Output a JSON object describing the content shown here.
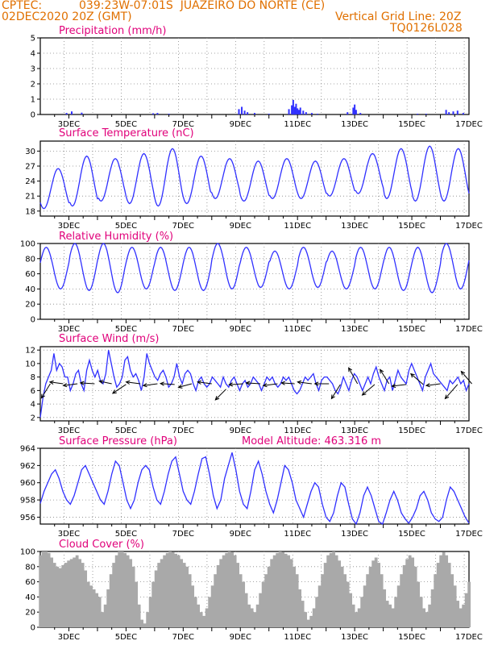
{
  "header": {
    "org": "CPTEC:",
    "location": "039:23W-07:01S  JUAZEIRO DO NORTE (CE)",
    "init_time": "02DEC2020 20Z (GMT)",
    "grid_note": "Vertical Grid Line: 20Z",
    "grid_id": "TQ0126L028",
    "model_altitude": "Model Altitude: 463.316 m"
  },
  "x_labels": [
    "3DEC",
    "5DEC",
    "7DEC",
    "9DEC",
    "11DEC",
    "13DEC",
    "15DEC",
    "17DEC"
  ],
  "colors": {
    "line": "#3030ff",
    "cloud": "#a9a9a9",
    "title": "#e0007a",
    "header": "#e07000"
  },
  "chart_data": [
    {
      "type": "bar",
      "title": "Precipitation (mm/h)",
      "ylim": [
        0,
        5
      ],
      "yticks": [
        0,
        1,
        2,
        3,
        4,
        5
      ],
      "x_range_days": [
        2,
        17
      ],
      "bars": [
        [
          2.92,
          0.1
        ],
        [
          3.1,
          0.2
        ],
        [
          3.45,
          0.12
        ],
        [
          5.95,
          0.08
        ],
        [
          6.1,
          0.1
        ],
        [
          6.5,
          0.05
        ],
        [
          8.95,
          0.35
        ],
        [
          9.05,
          0.5
        ],
        [
          9.15,
          0.25
        ],
        [
          9.25,
          0.15
        ],
        [
          9.5,
          0.1
        ],
        [
          10.0,
          0.05
        ],
        [
          10.7,
          0.35
        ],
        [
          10.8,
          0.6
        ],
        [
          10.85,
          0.95
        ],
        [
          10.9,
          0.5
        ],
        [
          10.95,
          0.7
        ],
        [
          11.0,
          0.4
        ],
        [
          11.05,
          0.3
        ],
        [
          11.1,
          0.45
        ],
        [
          11.2,
          0.25
        ],
        [
          11.3,
          0.15
        ],
        [
          11.5,
          0.1
        ],
        [
          11.7,
          0.05
        ],
        [
          12.75,
          0.15
        ],
        [
          12.95,
          0.45
        ],
        [
          13.0,
          0.65
        ],
        [
          13.05,
          0.3
        ],
        [
          13.2,
          0.1
        ],
        [
          15.2,
          0.05
        ],
        [
          15.5,
          0.05
        ],
        [
          16.2,
          0.3
        ],
        [
          16.3,
          0.15
        ],
        [
          16.45,
          0.2
        ],
        [
          16.6,
          0.25
        ],
        [
          16.8,
          0.1
        ]
      ]
    },
    {
      "type": "line",
      "title": "Surface Temperature (nC)",
      "ylim": [
        17,
        32
      ],
      "yticks": [
        18,
        21,
        24,
        27,
        30
      ],
      "x_range_days": [
        2,
        17
      ],
      "max_hour": 15,
      "min_hour": 4,
      "daily_max": [
        26.5,
        29.0,
        28.5,
        29.5,
        30.5,
        29.0,
        28.5,
        28.0,
        28.5,
        28.0,
        28.5,
        29.5,
        30.5,
        31.0,
        30.5,
        29.5
      ],
      "daily_min": [
        18.5,
        19.0,
        20.0,
        19.5,
        19.0,
        19.5,
        20.5,
        20.0,
        20.5,
        20.5,
        21.0,
        21.5,
        20.5,
        20.0,
        20.0,
        21.0
      ]
    },
    {
      "type": "line",
      "title": "Relative Humidity (%)",
      "ylim": [
        0,
        100
      ],
      "yticks": [
        0,
        20,
        40,
        60,
        80,
        100
      ],
      "x_range_days": [
        2,
        17
      ],
      "max_hour": 5,
      "min_hour": 17,
      "daily_max": [
        95,
        100,
        100,
        95,
        95,
        95,
        100,
        95,
        90,
        95,
        90,
        95,
        95,
        95,
        100,
        95
      ],
      "daily_min": [
        40,
        38,
        35,
        40,
        38,
        38,
        40,
        42,
        40,
        42,
        40,
        40,
        38,
        35,
        40,
        42
      ]
    },
    {
      "type": "line",
      "title": "Surface Wind (m/s)",
      "ylim": [
        1.5,
        12.5
      ],
      "yticks": [
        2,
        4,
        6,
        8,
        10,
        12
      ],
      "x_range_days": [
        2,
        17
      ],
      "values": [
        2,
        5,
        7,
        8,
        9,
        11.5,
        9,
        10,
        9.5,
        8,
        8,
        6,
        7,
        8.5,
        9,
        7,
        6,
        9,
        10.5,
        9,
        8,
        9,
        7.5,
        7,
        8.5,
        12,
        10,
        8,
        6.5,
        7,
        8,
        10.5,
        11,
        9,
        8,
        8.5,
        7.5,
        6,
        8,
        11.5,
        10,
        9,
        8,
        7.5,
        8.5,
        9,
        8,
        6.5,
        7,
        8,
        10,
        8,
        7,
        8.5,
        9,
        8.5,
        7,
        6,
        7.5,
        8,
        7,
        6.5,
        7,
        8,
        7.5,
        7,
        6.5,
        8,
        7,
        6.5,
        7.5,
        8,
        7,
        6,
        7,
        7.5,
        6.5,
        7,
        8,
        7.5,
        7,
        6,
        7,
        8,
        7.5,
        8,
        7,
        6.5,
        7,
        8,
        7.5,
        8,
        7,
        6,
        5.5,
        6,
        7,
        8,
        7.5,
        8,
        8.5,
        7,
        6,
        7.5,
        8,
        8,
        7.5,
        7,
        6,
        5.5,
        6.5,
        8,
        7,
        6,
        7.5,
        8.5,
        8,
        7,
        6,
        7,
        8,
        7,
        8.5,
        9.5,
        8,
        7,
        6,
        7.5,
        8,
        6,
        7.5,
        9,
        8,
        7.5,
        7,
        9,
        10,
        9,
        8,
        7,
        6,
        8,
        9,
        10,
        8.5,
        8,
        7.5,
        7,
        6.5,
        6,
        7.5,
        7,
        7.5,
        8,
        7,
        7.5,
        6,
        7
      ],
      "arrows": [
        [
          2.35,
          7,
          -0.5,
          -0.8
        ],
        [
          2.8,
          7,
          -0.75,
          0.1
        ],
        [
          3.3,
          7,
          -0.8,
          -0.1
        ],
        [
          3.9,
          7,
          -0.8,
          0.05
        ],
        [
          4.5,
          7,
          -0.7,
          0.15
        ],
        [
          5.0,
          6.9,
          -0.75,
          -0.5
        ],
        [
          5.5,
          7,
          -0.8,
          0.1
        ],
        [
          6.1,
          7,
          -0.8,
          -0.1
        ],
        [
          6.7,
          6.9,
          -0.8,
          0.05
        ],
        [
          7.3,
          7,
          -0.75,
          -0.2
        ],
        [
          8.0,
          7,
          -0.8,
          0.1
        ],
        [
          8.5,
          6.2,
          -0.6,
          -0.6
        ],
        [
          9.1,
          7,
          -0.8,
          -0.05
        ],
        [
          9.7,
          7,
          -0.8,
          0.05
        ],
        [
          10.3,
          7,
          -0.8,
          -0.1
        ],
        [
          10.9,
          7,
          -0.75,
          0.05
        ],
        [
          11.5,
          7,
          -0.8,
          0.1
        ],
        [
          12.1,
          7,
          -0.8,
          0
        ],
        [
          12.5,
          6.9,
          -0.5,
          -0.8
        ],
        [
          13.1,
          7,
          -0.5,
          0.9
        ],
        [
          13.7,
          6.9,
          -0.7,
          -0.6
        ],
        [
          14.2,
          7,
          -0.5,
          0.8
        ],
        [
          14.8,
          6.9,
          -0.8,
          -0.1
        ],
        [
          15.4,
          6.9,
          -0.7,
          0.6
        ],
        [
          16.0,
          7,
          -0.8,
          -0.1
        ],
        [
          16.6,
          6.9,
          -0.7,
          -0.8
        ],
        [
          17.1,
          7,
          -0.6,
          0.7
        ]
      ]
    },
    {
      "type": "line",
      "title": "Surface Pressure (hPa)",
      "ylim": [
        955.2,
        964
      ],
      "yticks": [
        956,
        958,
        960,
        962,
        964
      ],
      "x_range_days": [
        2,
        17
      ],
      "values": [
        957.6,
        959,
        960,
        961,
        961.5,
        960.5,
        959,
        958,
        957.5,
        958.5,
        960,
        961.5,
        962,
        961,
        960,
        959,
        958,
        957.5,
        959,
        961,
        962.5,
        962,
        960,
        958,
        957,
        958,
        960,
        961.5,
        962,
        961.5,
        959.5,
        958,
        957.5,
        959,
        961,
        962.5,
        963,
        961,
        959,
        958,
        957.5,
        959,
        961,
        962.8,
        963,
        961,
        958.5,
        957,
        958,
        960.5,
        962,
        963.5,
        961.5,
        959,
        957.5,
        957,
        959,
        961.5,
        962.5,
        961,
        959,
        957.5,
        956.5,
        958,
        960,
        962,
        961.5,
        960,
        958,
        957,
        956,
        957.5,
        959,
        960,
        959.5,
        957.5,
        956,
        955.5,
        956.5,
        958.5,
        960,
        959.5,
        957.5,
        955.8,
        955.2,
        956.5,
        958.5,
        959.5,
        958.5,
        957,
        955.5,
        955.2,
        956.5,
        958,
        959,
        958,
        956.5,
        955.8,
        955.3,
        956,
        957,
        958.5,
        959,
        958,
        956.5,
        955.8,
        955.5,
        956,
        958,
        959.5,
        959,
        958,
        957,
        956,
        955.3
      ],
      "annotation": "Model Altitude: 463.316 m"
    },
    {
      "type": "area",
      "title": "Cloud Cover (%)",
      "ylim": [
        0,
        100
      ],
      "yticks": [
        0,
        20,
        40,
        60,
        80,
        100
      ],
      "x_range_days": [
        2,
        17
      ],
      "values": [
        95,
        100,
        100,
        98,
        92,
        85,
        80,
        78,
        82,
        85,
        88,
        90,
        92,
        95,
        90,
        85,
        75,
        60,
        55,
        50,
        45,
        40,
        20,
        30,
        50,
        70,
        85,
        95,
        100,
        100,
        98,
        95,
        90,
        80,
        60,
        30,
        10,
        5,
        20,
        40,
        60,
        75,
        85,
        90,
        95,
        98,
        100,
        99,
        97,
        95,
        90,
        85,
        80,
        70,
        55,
        40,
        30,
        20,
        15,
        25,
        40,
        55,
        70,
        82,
        90,
        95,
        98,
        100,
        99,
        95,
        85,
        70,
        60,
        45,
        30,
        25,
        20,
        30,
        45,
        60,
        70,
        80,
        90,
        95,
        98,
        100,
        99,
        97,
        95,
        90,
        80,
        70,
        50,
        35,
        20,
        10,
        15,
        25,
        40,
        55,
        70,
        85,
        95,
        98,
        100,
        95,
        88,
        80,
        70,
        60,
        45,
        30,
        20,
        25,
        40,
        55,
        70,
        80,
        88,
        92,
        85,
        70,
        50,
        35,
        30,
        25,
        40,
        55,
        70,
        82,
        90,
        95,
        92,
        80,
        60,
        40,
        25,
        20,
        30,
        50,
        70,
        85,
        95,
        99,
        95,
        85,
        70,
        55,
        35,
        25,
        30,
        45,
        60
      ]
    }
  ]
}
